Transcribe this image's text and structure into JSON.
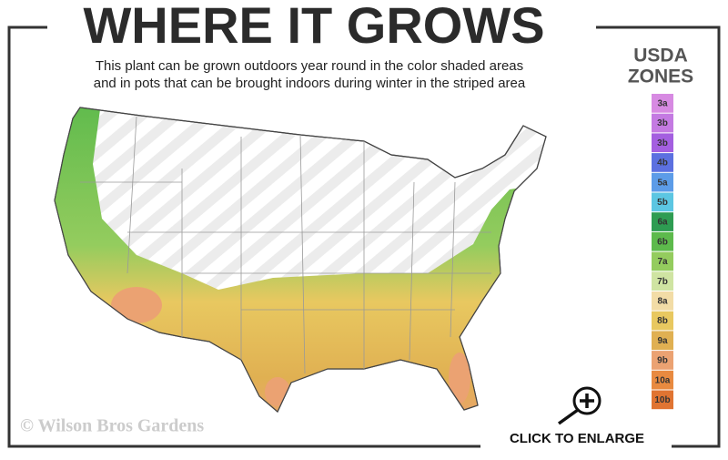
{
  "header": {
    "title": "WHERE IT GROWS",
    "subtitle_lines": [
      "This plant can be grown outdoors year round in the color shaded areas",
      "and in pots that can be brought indoors during winter in the striped area"
    ]
  },
  "legend": {
    "title_lines": [
      "USDA",
      "ZONES"
    ],
    "zones": [
      {
        "label": "3a",
        "color": "#d78ae2"
      },
      {
        "label": "3b",
        "color": "#c47ae2"
      },
      {
        "label": "3b",
        "color": "#a45fe0"
      },
      {
        "label": "4b",
        "color": "#5c70e0"
      },
      {
        "label": "5a",
        "color": "#5c9ce8"
      },
      {
        "label": "5b",
        "color": "#5cc6e2"
      },
      {
        "label": "6a",
        "color": "#2e9c52"
      },
      {
        "label": "6b",
        "color": "#5dba4c"
      },
      {
        "label": "7a",
        "color": "#94cc5e"
      },
      {
        "label": "7b",
        "color": "#cfe4a2"
      },
      {
        "label": "8a",
        "color": "#f2dca6"
      },
      {
        "label": "8b",
        "color": "#e8c860"
      },
      {
        "label": "9a",
        "color": "#e0b052"
      },
      {
        "label": "9b",
        "color": "#eba272"
      },
      {
        "label": "10a",
        "color": "#e88a40"
      },
      {
        "label": "10b",
        "color": "#e07432"
      }
    ]
  },
  "footer": {
    "copyright": "© Wilson Bros Gardens",
    "enlarge": "CLICK TO ENLARGE"
  }
}
